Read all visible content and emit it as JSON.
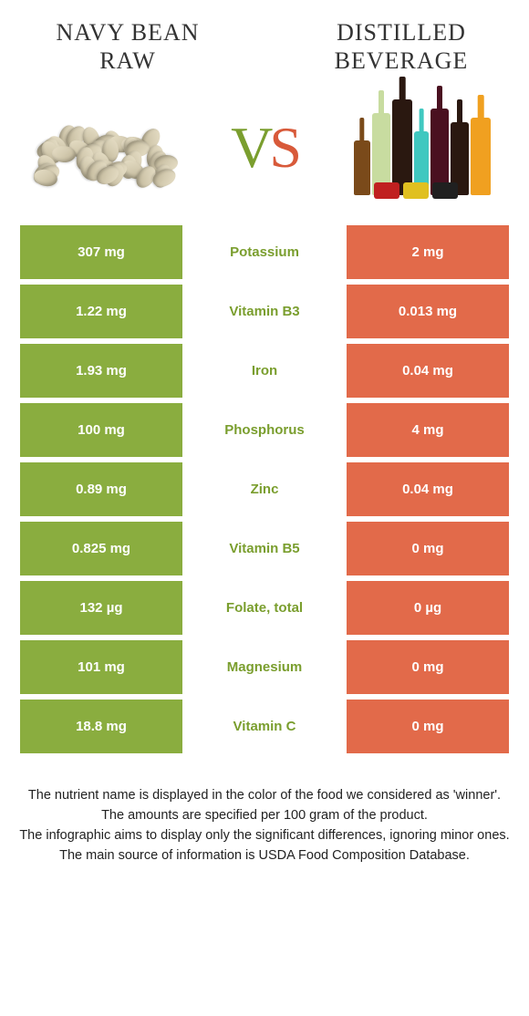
{
  "food_a": {
    "title": "Navy Bean Raw"
  },
  "food_b": {
    "title": "Distilled Beverage"
  },
  "vs": {
    "v": "V",
    "s": "S"
  },
  "colors": {
    "a": "#8aad3f",
    "b": "#e26a4a",
    "nutrient_a": "#7a9e2e"
  },
  "rows": [
    {
      "a": "307 mg",
      "nutrient": "Potassium",
      "b": "2 mg",
      "winner": "a"
    },
    {
      "a": "1.22 mg",
      "nutrient": "Vitamin B3",
      "b": "0.013 mg",
      "winner": "a"
    },
    {
      "a": "1.93 mg",
      "nutrient": "Iron",
      "b": "0.04 mg",
      "winner": "a"
    },
    {
      "a": "100 mg",
      "nutrient": "Phosphorus",
      "b": "4 mg",
      "winner": "a"
    },
    {
      "a": "0.89 mg",
      "nutrient": "Zinc",
      "b": "0.04 mg",
      "winner": "a"
    },
    {
      "a": "0.825 mg",
      "nutrient": "Vitamin B5",
      "b": "0 mg",
      "winner": "a"
    },
    {
      "a": "132 µg",
      "nutrient": "Folate, total",
      "b": "0 µg",
      "winner": "a"
    },
    {
      "a": "101 mg",
      "nutrient": "Magnesium",
      "b": "0 mg",
      "winner": "a"
    },
    {
      "a": "18.8 mg",
      "nutrient": "Vitamin C",
      "b": "0 mg",
      "winner": "a"
    }
  ],
  "footer": {
    "l1": "The nutrient name is displayed in the color of the food we considered as 'winner'.",
    "l2": "The amounts are specified per 100 gram of the product.",
    "l3": "The infographic aims to display only the significant differences, ignoring minor ones.",
    "l4": "The main source of information is USDA Food Composition Database."
  }
}
